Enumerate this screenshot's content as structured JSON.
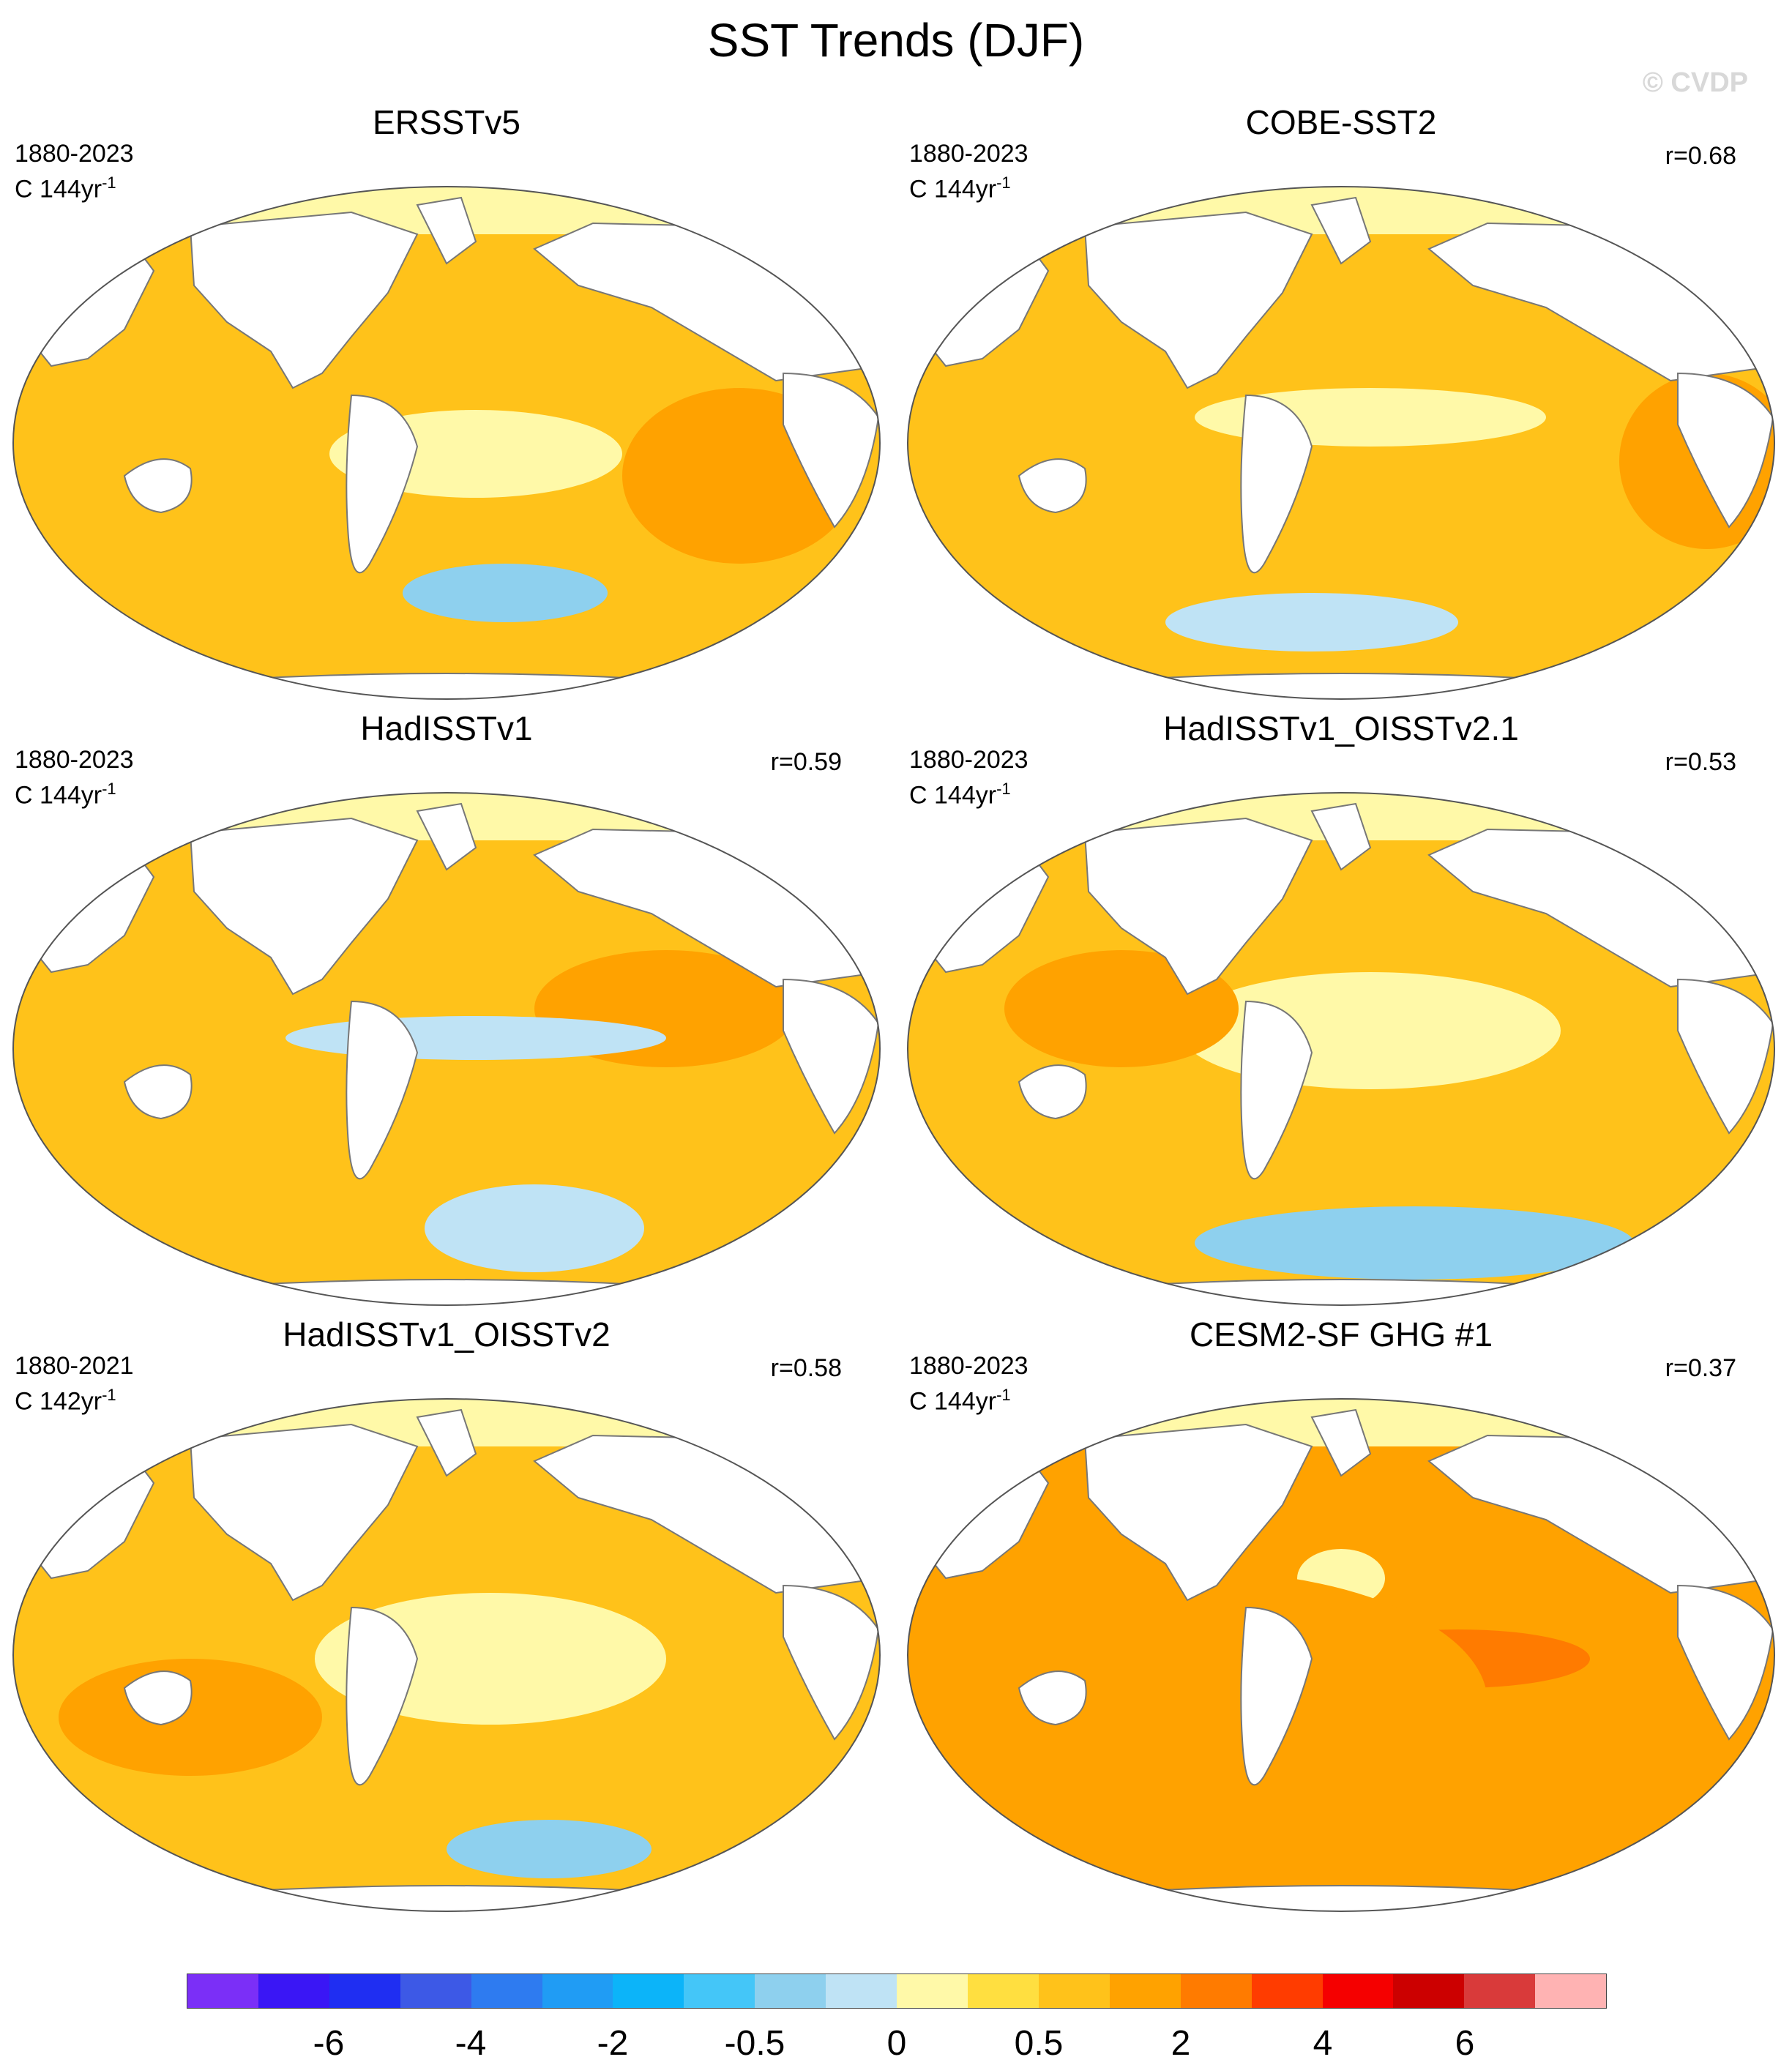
{
  "title": "SST Trends (DJF)",
  "watermark": "© CVDP",
  "panels": [
    {
      "name": "ERSSTv5",
      "period": "1880-2023",
      "units_prefix": "C 144yr",
      "units_sup": "-1",
      "r": ""
    },
    {
      "name": "COBE-SST2",
      "period": "1880-2023",
      "units_prefix": "C 144yr",
      "units_sup": "-1",
      "r": "r=0.68"
    },
    {
      "name": "HadISSTv1",
      "period": "1880-2023",
      "units_prefix": "C 144yr",
      "units_sup": "-1",
      "r": "r=0.59"
    },
    {
      "name": "HadISSTv1_OISSTv2.1",
      "period": "1880-2023",
      "units_prefix": "C 144yr",
      "units_sup": "-1",
      "r": "r=0.53"
    },
    {
      "name": "HadISSTv1_OISSTv2",
      "period": "1880-2021",
      "units_prefix": "C 142yr",
      "units_sup": "-1",
      "r": "r=0.58"
    },
    {
      "name": "CESM2-SF GHG #1",
      "period": "1880-2023",
      "units_prefix": "C 144yr",
      "units_sup": "-1",
      "r": "r=0.37"
    }
  ],
  "colorbar": {
    "colors": [
      "#7b2ff7",
      "#3a16f5",
      "#1f2ef2",
      "#3d59e6",
      "#2e7bf0",
      "#209cf4",
      "#0cb4f9",
      "#44c6f8",
      "#8ed0ee",
      "#bfe3f5",
      "#fff9a8",
      "#ffdf40",
      "#ffc21a",
      "#ffa200",
      "#ff7b00",
      "#ff3c00",
      "#f50000",
      "#cc0000",
      "#d93a3a",
      "#ffb3b3"
    ],
    "labels": [
      "-6",
      "-4",
      "-2",
      "-0.5",
      "0",
      "0.5",
      "2",
      "4",
      "6"
    ]
  },
  "colors": {
    "ocean_warm": "#ffc21a",
    "ocean_strong": "#ffa200",
    "ocean_weak": "#fff9a8",
    "ocean_cool": "#bfe3f5",
    "ocean_cold": "#209cf4",
    "land": "#ffffff",
    "coast": "#777777"
  }
}
